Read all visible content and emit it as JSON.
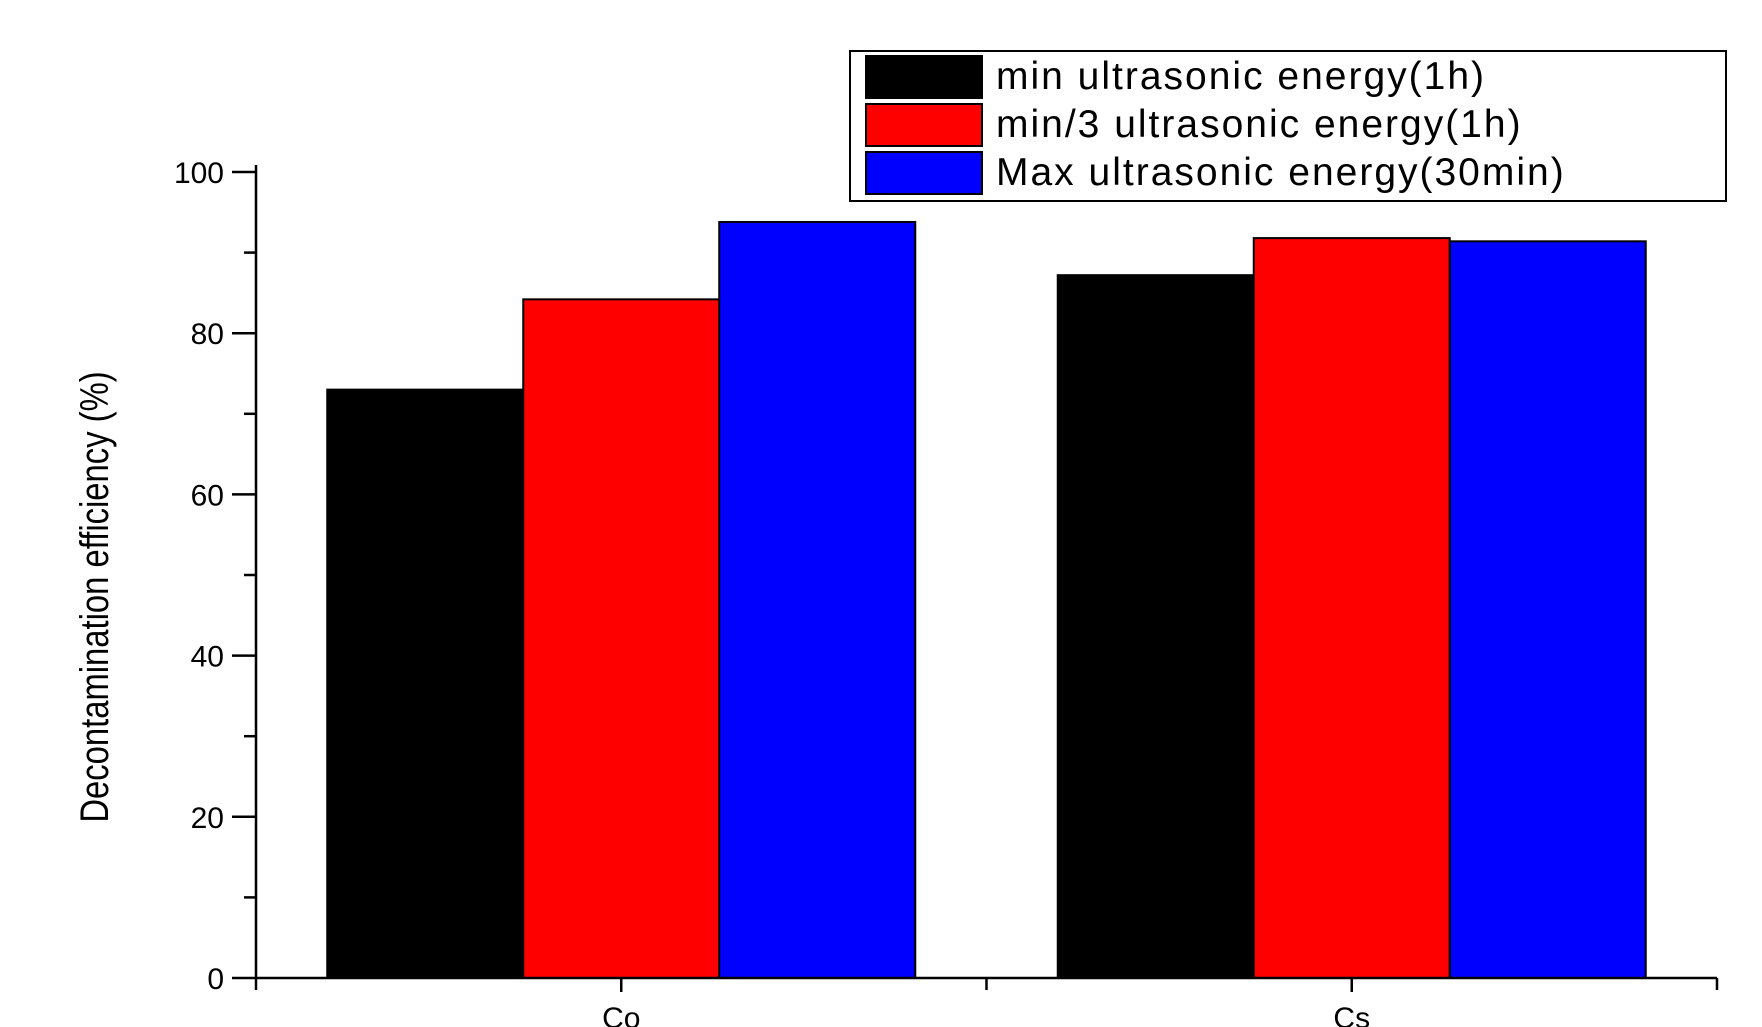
{
  "chart_data": {
    "type": "bar",
    "title": "",
    "xlabel": "",
    "ylabel": "Decontamination efficiency (%)",
    "categories": [
      "Co",
      "Cs"
    ],
    "series": [
      {
        "name": "min ultrasonic energy(1h)",
        "color": "#000000",
        "values": [
          73,
          87.2
        ]
      },
      {
        "name": "min/3 ultrasonic energy(1h)",
        "color": "#ff0000",
        "values": [
          84.2,
          91.8
        ]
      },
      {
        "name": "Max ultrasonic energy(30min)",
        "color": "#0000ff",
        "values": [
          93.8,
          91.4
        ]
      }
    ],
    "ylim": [
      0,
      100
    ],
    "yticks": [
      "0",
      "20",
      "40",
      "60",
      "80",
      "100"
    ],
    "grid": false,
    "legend_position": "top-right"
  }
}
